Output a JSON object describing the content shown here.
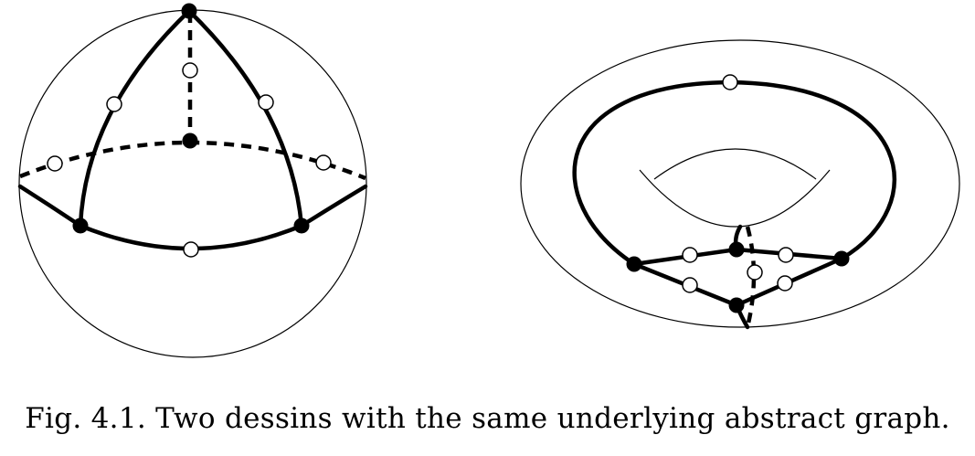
{
  "figure": {
    "caption": "Fig. 4.1.  Two dessins with the same underlying abstract graph."
  },
  "colors": {
    "stroke": "#000000",
    "background": "#ffffff",
    "white_vertex_fill": "#ffffff",
    "black_vertex_fill": "#000000"
  }
}
